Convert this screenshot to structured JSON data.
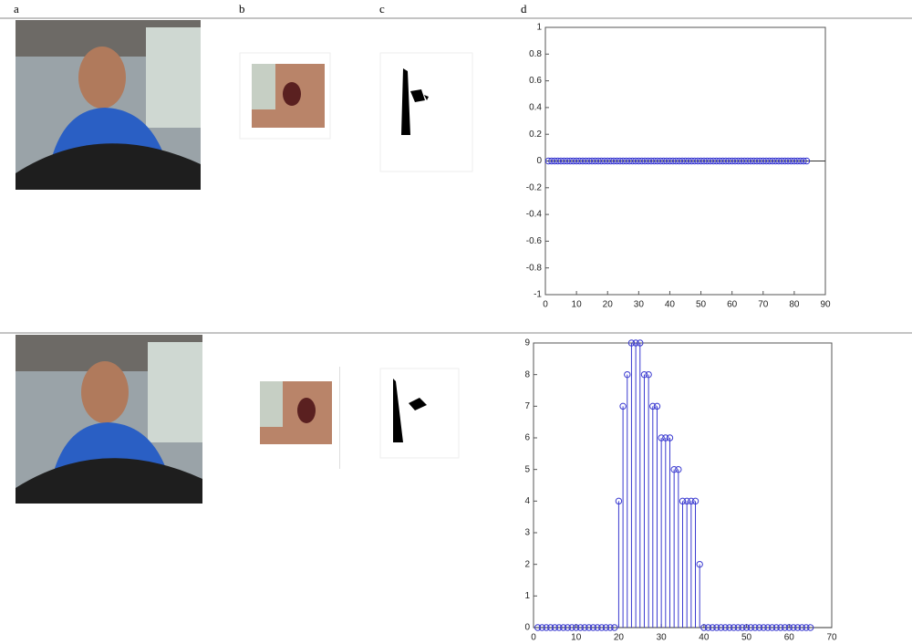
{
  "columns": [
    "a",
    "b",
    "c",
    "d"
  ],
  "chart_data": [
    {
      "type": "stem",
      "color": "#3a3ad0",
      "xlim": [
        0,
        90
      ],
      "xticks": [
        0,
        10,
        20,
        30,
        40,
        50,
        60,
        70,
        80,
        90
      ],
      "ylim": [
        -1,
        1
      ],
      "yticks": [
        -1,
        -0.8,
        -0.6,
        -0.4,
        -0.2,
        0,
        0.2,
        0.4,
        0.6,
        0.8,
        1
      ],
      "x": [
        1,
        2,
        3,
        4,
        5,
        6,
        7,
        8,
        9,
        10,
        11,
        12,
        13,
        14,
        15,
        16,
        17,
        18,
        19,
        20,
        21,
        22,
        23,
        24,
        25,
        26,
        27,
        28,
        29,
        30,
        31,
        32,
        33,
        34,
        35,
        36,
        37,
        38,
        39,
        40,
        41,
        42,
        43,
        44,
        45,
        46,
        47,
        48,
        49,
        50,
        51,
        52,
        53,
        54,
        55,
        56,
        57,
        58,
        59,
        60,
        61,
        62,
        63,
        64,
        65,
        66,
        67,
        68,
        69,
        70,
        71,
        72,
        73,
        74,
        75,
        76,
        77,
        78,
        79,
        80,
        81,
        82,
        83,
        84
      ],
      "values": [
        0,
        0,
        0,
        0,
        0,
        0,
        0,
        0,
        0,
        0,
        0,
        0,
        0,
        0,
        0,
        0,
        0,
        0,
        0,
        0,
        0,
        0,
        0,
        0,
        0,
        0,
        0,
        0,
        0,
        0,
        0,
        0,
        0,
        0,
        0,
        0,
        0,
        0,
        0,
        0,
        0,
        0,
        0,
        0,
        0,
        0,
        0,
        0,
        0,
        0,
        0,
        0,
        0,
        0,
        0,
        0,
        0,
        0,
        0,
        0,
        0,
        0,
        0,
        0,
        0,
        0,
        0,
        0,
        0,
        0,
        0,
        0,
        0,
        0,
        0,
        0,
        0,
        0,
        0,
        0,
        0,
        0,
        0,
        0
      ]
    },
    {
      "type": "stem",
      "color": "#3a3ad0",
      "xlim": [
        0,
        70
      ],
      "xticks": [
        0,
        10,
        20,
        30,
        40,
        50,
        60,
        70
      ],
      "ylim": [
        0,
        9
      ],
      "yticks": [
        0,
        1,
        2,
        3,
        4,
        5,
        6,
        7,
        8,
        9
      ],
      "x": [
        1,
        2,
        3,
        4,
        5,
        6,
        7,
        8,
        9,
        10,
        11,
        12,
        13,
        14,
        15,
        16,
        17,
        18,
        19,
        20,
        21,
        22,
        23,
        24,
        25,
        26,
        27,
        28,
        29,
        30,
        31,
        32,
        33,
        34,
        35,
        36,
        37,
        38,
        39,
        40,
        41,
        42,
        43,
        44,
        45,
        46,
        47,
        48,
        49,
        50,
        51,
        52,
        53,
        54,
        55,
        56,
        57,
        58,
        59,
        60,
        61,
        62,
        63,
        64,
        65
      ],
      "values": [
        0,
        0,
        0,
        0,
        0,
        0,
        0,
        0,
        0,
        0,
        0,
        0,
        0,
        0,
        0,
        0,
        0,
        0,
        0,
        4,
        7,
        8,
        9,
        9,
        9,
        8,
        8,
        7,
        7,
        6,
        6,
        6,
        5,
        5,
        4,
        4,
        4,
        4,
        2,
        0,
        0,
        0,
        0,
        0,
        0,
        0,
        0,
        0,
        0,
        0,
        0,
        0,
        0,
        0,
        0,
        0,
        0,
        0,
        0,
        0,
        0,
        0,
        0,
        0,
        0
      ]
    }
  ]
}
